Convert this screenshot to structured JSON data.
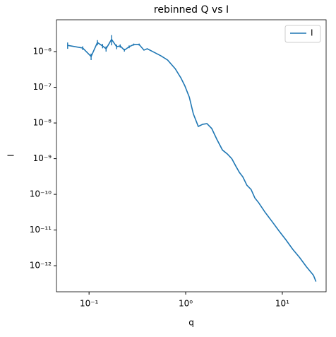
{
  "chart_data": {
    "type": "line",
    "title": "rebinned Q vs I",
    "xlabel": "q",
    "ylabel": "I",
    "xscale": "log",
    "yscale": "log",
    "legend": "upper right",
    "x": [
      0.06,
      0.086,
      0.105,
      0.122,
      0.138,
      0.15,
      0.171,
      0.193,
      0.21,
      0.232,
      0.26,
      0.29,
      0.33,
      0.37,
      0.4,
      0.47,
      0.555,
      0.65,
      0.78,
      0.89,
      0.98,
      1.09,
      1.2,
      1.35,
      1.5,
      1.66,
      1.86,
      2.1,
      2.4,
      2.7,
      3.0,
      3.3,
      3.6,
      3.9,
      4.3,
      4.75,
      5.2,
      5.7,
      6.6,
      7.8,
      9.2,
      10.9,
      12.8,
      15.1,
      17.8,
      21,
      22.3
    ],
    "series": [
      {
        "name": "I",
        "color": "#1f77b4",
        "values": [
          1.5e-06,
          1.26e-06,
          7.3e-07,
          1.8e-06,
          1.44e-06,
          1.2e-06,
          2.2e-06,
          1.37e-06,
          1.44e-06,
          1.1e-06,
          1.37e-06,
          1.58e-06,
          1.58e-06,
          1.1e-06,
          1.2e-06,
          9.6e-07,
          7.6e-07,
          5.8e-07,
          3.3e-07,
          1.85e-07,
          1.1e-07,
          5.3e-08,
          1.8e-08,
          8e-09,
          9.2e-09,
          9.6e-09,
          7e-09,
          3.5e-09,
          1.75e-09,
          1.35e-09,
          1e-09,
          6.2e-10,
          4.1e-10,
          3.1e-10,
          1.8e-10,
          1.37e-10,
          7.9e-11,
          5.8e-11,
          3.2e-11,
          1.76e-11,
          9.6e-12,
          5.3e-12,
          2.9e-12,
          1.7e-12,
          9.3e-13,
          5.4e-13,
          3.6e-13
        ],
        "errors": [
          3e-07,
          1.5e-07,
          1.5e-07,
          3e-07,
          2e-07,
          2e-07,
          7e-07,
          2e-07,
          1.5e-07,
          1e-07,
          1.2e-07,
          1e-07,
          1e-07,
          null,
          null,
          null,
          null,
          null,
          null,
          null,
          null,
          null,
          null,
          null,
          null,
          null,
          null,
          null,
          null,
          null,
          null,
          null,
          null,
          null,
          null,
          null,
          null,
          null,
          null,
          null,
          null,
          null,
          null,
          null,
          null,
          null,
          null
        ]
      }
    ],
    "xlim": [
      0.046,
      28.4
    ],
    "ylim": [
      1.86e-13,
      7.8e-06
    ],
    "xticks": [
      {
        "value": 0.1,
        "label": "10⁻¹"
      },
      {
        "value": 1,
        "label": "10⁰"
      },
      {
        "value": 10,
        "label": "10¹"
      }
    ],
    "yticks": [
      {
        "value": 1e-12,
        "label": "10⁻¹²"
      },
      {
        "value": 1e-11,
        "label": "10⁻¹¹"
      },
      {
        "value": 1e-10,
        "label": "10⁻¹⁰"
      },
      {
        "value": 1e-09,
        "label": "10⁻⁹"
      },
      {
        "value": 1e-08,
        "label": "10⁻⁸"
      },
      {
        "value": 1e-07,
        "label": "10⁻⁷"
      },
      {
        "value": 1e-06,
        "label": "10⁻⁶"
      }
    ]
  }
}
